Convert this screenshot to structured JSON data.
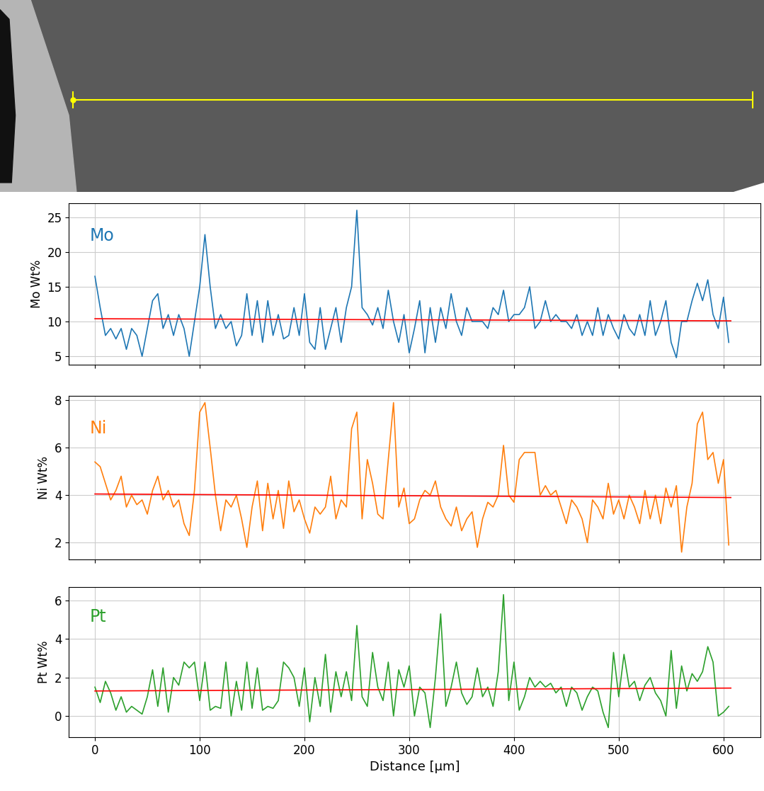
{
  "chart_data": [
    {
      "type": "line",
      "ylabel": "Mo Wt%",
      "annotation": "Mo",
      "grid": true,
      "tick_labels": "y",
      "xlim": [
        -25,
        635
      ],
      "xticks": [
        0,
        100,
        200,
        300,
        400,
        500,
        600
      ],
      "ylim": [
        3.8,
        27
      ],
      "yticks": [
        5,
        10,
        15,
        20,
        25
      ],
      "x": [
        0,
        5,
        10,
        15,
        20,
        25,
        30,
        35,
        40,
        45,
        50,
        55,
        60,
        65,
        70,
        75,
        80,
        85,
        90,
        95,
        100,
        105,
        110,
        115,
        120,
        125,
        130,
        135,
        140,
        145,
        150,
        155,
        160,
        165,
        170,
        175,
        180,
        185,
        190,
        195,
        200,
        205,
        210,
        215,
        220,
        225,
        230,
        235,
        240,
        245,
        250,
        255,
        260,
        265,
        270,
        275,
        280,
        285,
        290,
        295,
        300,
        305,
        310,
        315,
        320,
        325,
        330,
        335,
        340,
        345,
        350,
        355,
        360,
        365,
        370,
        375,
        380,
        385,
        390,
        395,
        400,
        405,
        410,
        415,
        420,
        425,
        430,
        435,
        440,
        445,
        450,
        455,
        460,
        465,
        470,
        475,
        480,
        485,
        490,
        495,
        500,
        505,
        510,
        515,
        520,
        525,
        530,
        535,
        540,
        545,
        550,
        555,
        560,
        565,
        570,
        575,
        580,
        585,
        590,
        595,
        600,
        605
      ],
      "series": [
        {
          "color": "#1f77b4",
          "values": [
            16.5,
            12,
            8,
            9,
            7.5,
            9,
            6,
            9,
            8,
            5,
            9,
            13,
            14,
            9,
            11,
            8,
            11,
            9,
            5,
            10,
            15,
            22.5,
            15,
            9,
            11,
            9,
            10,
            6.5,
            8,
            14,
            8,
            13,
            7,
            13,
            8,
            11,
            7.5,
            8,
            12,
            8,
            14,
            7,
            6,
            12,
            6,
            9,
            12,
            7,
            12,
            15,
            26,
            12,
            11,
            9.5,
            12,
            9,
            14.5,
            10,
            7,
            11,
            5.5,
            9,
            13,
            5.5,
            12,
            7,
            12,
            9,
            14,
            10,
            8,
            12,
            10,
            10,
            10,
            9,
            12,
            11,
            14.5,
            10,
            11,
            11,
            12,
            15,
            9,
            10,
            13,
            10,
            11,
            10,
            10,
            9,
            11,
            8,
            10,
            8,
            12,
            8,
            11,
            9,
            7.5,
            11,
            9,
            8,
            11,
            8,
            13,
            8,
            10,
            13,
            7,
            4.8,
            10,
            10,
            13,
            15.5,
            13,
            16,
            11,
            9,
            13.5,
            7
          ]
        },
        {
          "color": "red",
          "x": [
            0,
            607
          ],
          "values": [
            10.4,
            10.1
          ]
        }
      ]
    },
    {
      "type": "line",
      "ylabel": "Ni Wt%",
      "annotation": "Ni",
      "grid": true,
      "tick_labels": "y",
      "xlim": [
        -25,
        635
      ],
      "xticks": [
        0,
        100,
        200,
        300,
        400,
        500,
        600
      ],
      "ylim": [
        1.3,
        8.2
      ],
      "yticks": [
        2,
        4,
        6,
        8
      ],
      "x": [
        0,
        5,
        10,
        15,
        20,
        25,
        30,
        35,
        40,
        45,
        50,
        55,
        60,
        65,
        70,
        75,
        80,
        85,
        90,
        95,
        100,
        105,
        110,
        115,
        120,
        125,
        130,
        135,
        140,
        145,
        150,
        155,
        160,
        165,
        170,
        175,
        180,
        185,
        190,
        195,
        200,
        205,
        210,
        215,
        220,
        225,
        230,
        235,
        240,
        245,
        250,
        255,
        260,
        265,
        270,
        275,
        280,
        285,
        290,
        295,
        300,
        305,
        310,
        315,
        320,
        325,
        330,
        335,
        340,
        345,
        350,
        355,
        360,
        365,
        370,
        375,
        380,
        385,
        390,
        395,
        400,
        405,
        410,
        415,
        420,
        425,
        430,
        435,
        440,
        445,
        450,
        455,
        460,
        465,
        470,
        475,
        480,
        485,
        490,
        495,
        500,
        505,
        510,
        515,
        520,
        525,
        530,
        535,
        540,
        545,
        550,
        555,
        560,
        565,
        570,
        575,
        580,
        585,
        590,
        595,
        600,
        605
      ],
      "series": [
        {
          "color": "#ff7f0e",
          "values": [
            5.4,
            5.2,
            4.5,
            3.8,
            4.2,
            4.8,
            3.5,
            4,
            3.6,
            3.8,
            3.2,
            4.2,
            4.8,
            3.8,
            4.2,
            3.5,
            3.8,
            2.8,
            2.3,
            4.2,
            7.5,
            7.9,
            6,
            4,
            2.5,
            3.8,
            3.5,
            4,
            3,
            1.8,
            3.5,
            4.6,
            2.5,
            4.5,
            3,
            4.2,
            2.6,
            4.6,
            3.3,
            3.8,
            3,
            2.4,
            3.5,
            3.2,
            3.5,
            4.8,
            3,
            3.8,
            3.5,
            6.8,
            7.5,
            3,
            5.5,
            4.5,
            3.2,
            3,
            5.5,
            7.9,
            3.5,
            4.3,
            2.8,
            3,
            3.8,
            4.2,
            4,
            4.6,
            3.5,
            3,
            2.7,
            3.5,
            2.5,
            3,
            3.3,
            1.8,
            3,
            3.7,
            3.5,
            4,
            6.1,
            4,
            3.7,
            5.5,
            5.8,
            5.8,
            5.8,
            4,
            4.4,
            4,
            4.2,
            3.5,
            2.8,
            3.8,
            3.5,
            3,
            2,
            3.8,
            3.5,
            3,
            4.5,
            3.2,
            3.8,
            3,
            4,
            3.5,
            2.8,
            4.2,
            3,
            4,
            2.8,
            4.3,
            3.5,
            4.4,
            1.6,
            3.5,
            4.5,
            7,
            7.5,
            5.5,
            5.8,
            4.5,
            5.5,
            1.9
          ]
        },
        {
          "color": "red",
          "x": [
            0,
            607
          ],
          "values": [
            4.05,
            3.9
          ]
        }
      ]
    },
    {
      "type": "line",
      "ylabel": "Pt Wt%",
      "annotation": "Pt",
      "grid": true,
      "xlabel": "Distance [µm]",
      "xlim": [
        -25,
        635
      ],
      "xticks": [
        0,
        100,
        200,
        300,
        400,
        500,
        600
      ],
      "ylim": [
        -1.1,
        6.7
      ],
      "yticks": [
        0,
        2,
        4,
        6
      ],
      "x": [
        0,
        5,
        10,
        15,
        20,
        25,
        30,
        35,
        40,
        45,
        50,
        55,
        60,
        65,
        70,
        75,
        80,
        85,
        90,
        95,
        100,
        105,
        110,
        115,
        120,
        125,
        130,
        135,
        140,
        145,
        150,
        155,
        160,
        165,
        170,
        175,
        180,
        185,
        190,
        195,
        200,
        205,
        210,
        215,
        220,
        225,
        230,
        235,
        240,
        245,
        250,
        255,
        260,
        265,
        270,
        275,
        280,
        285,
        290,
        295,
        300,
        305,
        310,
        315,
        320,
        325,
        330,
        335,
        340,
        345,
        350,
        355,
        360,
        365,
        370,
        375,
        380,
        385,
        390,
        395,
        400,
        405,
        410,
        415,
        420,
        425,
        430,
        435,
        440,
        445,
        450,
        455,
        460,
        465,
        470,
        475,
        480,
        485,
        490,
        495,
        500,
        505,
        510,
        515,
        520,
        525,
        530,
        535,
        540,
        545,
        550,
        555,
        560,
        565,
        570,
        575,
        580,
        585,
        590,
        595,
        600,
        605
      ],
      "series": [
        {
          "color": "#2ca02c",
          "values": [
            1.5,
            0.7,
            1.8,
            1.2,
            0.3,
            1,
            0.2,
            0.5,
            0.3,
            0.1,
            1,
            2.4,
            0.5,
            2.5,
            0.2,
            2,
            1.6,
            2.8,
            2.5,
            2.8,
            0.8,
            2.8,
            0.3,
            0.5,
            0.4,
            2.8,
            0,
            1.8,
            0.3,
            2.8,
            0.4,
            2.5,
            0.3,
            0.5,
            0.4,
            0.8,
            2.8,
            2.5,
            2,
            0.5,
            2.5,
            -0.3,
            2,
            0.5,
            3.2,
            0.2,
            2.3,
            1,
            2.3,
            0.8,
            4.7,
            1,
            0.5,
            3.3,
            1.5,
            0.8,
            2.8,
            0,
            2.4,
            1.5,
            2.6,
            0,
            1.5,
            1.2,
            -0.6,
            2,
            5.3,
            0.5,
            1.5,
            2.8,
            1.2,
            0.6,
            1,
            2.5,
            1,
            1.5,
            0.5,
            2.3,
            6.3,
            0.8,
            2.8,
            0.3,
            1,
            2,
            1.5,
            1.8,
            1.5,
            1.7,
            1.2,
            1.5,
            0.5,
            1.5,
            1.2,
            0.3,
            1,
            1.5,
            1.3,
            0.2,
            -0.6,
            3.3,
            1,
            3.2,
            1.5,
            1.8,
            0.8,
            1.6,
            2,
            1.2,
            0.8,
            0,
            3.4,
            0.4,
            2.6,
            1.3,
            2.2,
            1.8,
            2.3,
            3.6,
            2.8,
            0,
            0.2,
            0.5
          ]
        },
        {
          "color": "red",
          "x": [
            0,
            607
          ],
          "values": [
            1.3,
            1.45
          ]
        }
      ]
    }
  ]
}
